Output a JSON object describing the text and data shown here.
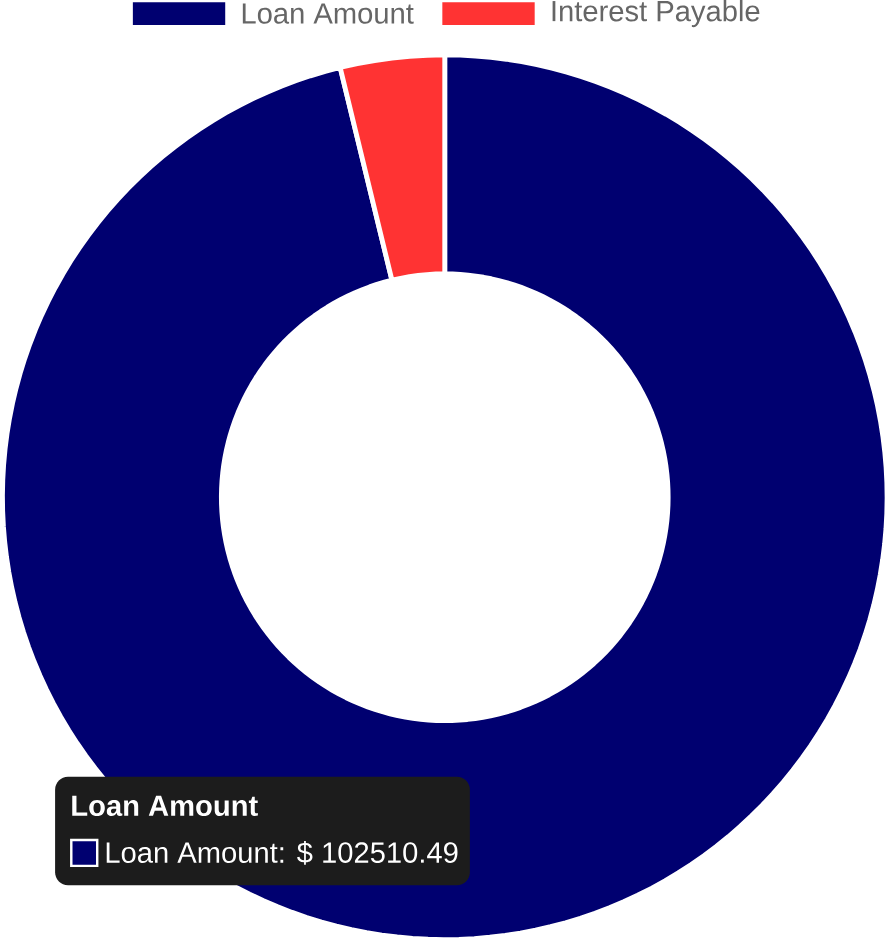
{
  "chart_data": {
    "type": "donut",
    "categories": [
      "Loan Amount",
      "Interest Payable"
    ],
    "values": [
      96.2,
      3.8
    ],
    "colors": [
      "#000070",
      "#ff3333"
    ],
    "legend": "top",
    "annotations": [
      "Loan Amount",
      "Loan Amount: $ 102510.49"
    ]
  }
}
